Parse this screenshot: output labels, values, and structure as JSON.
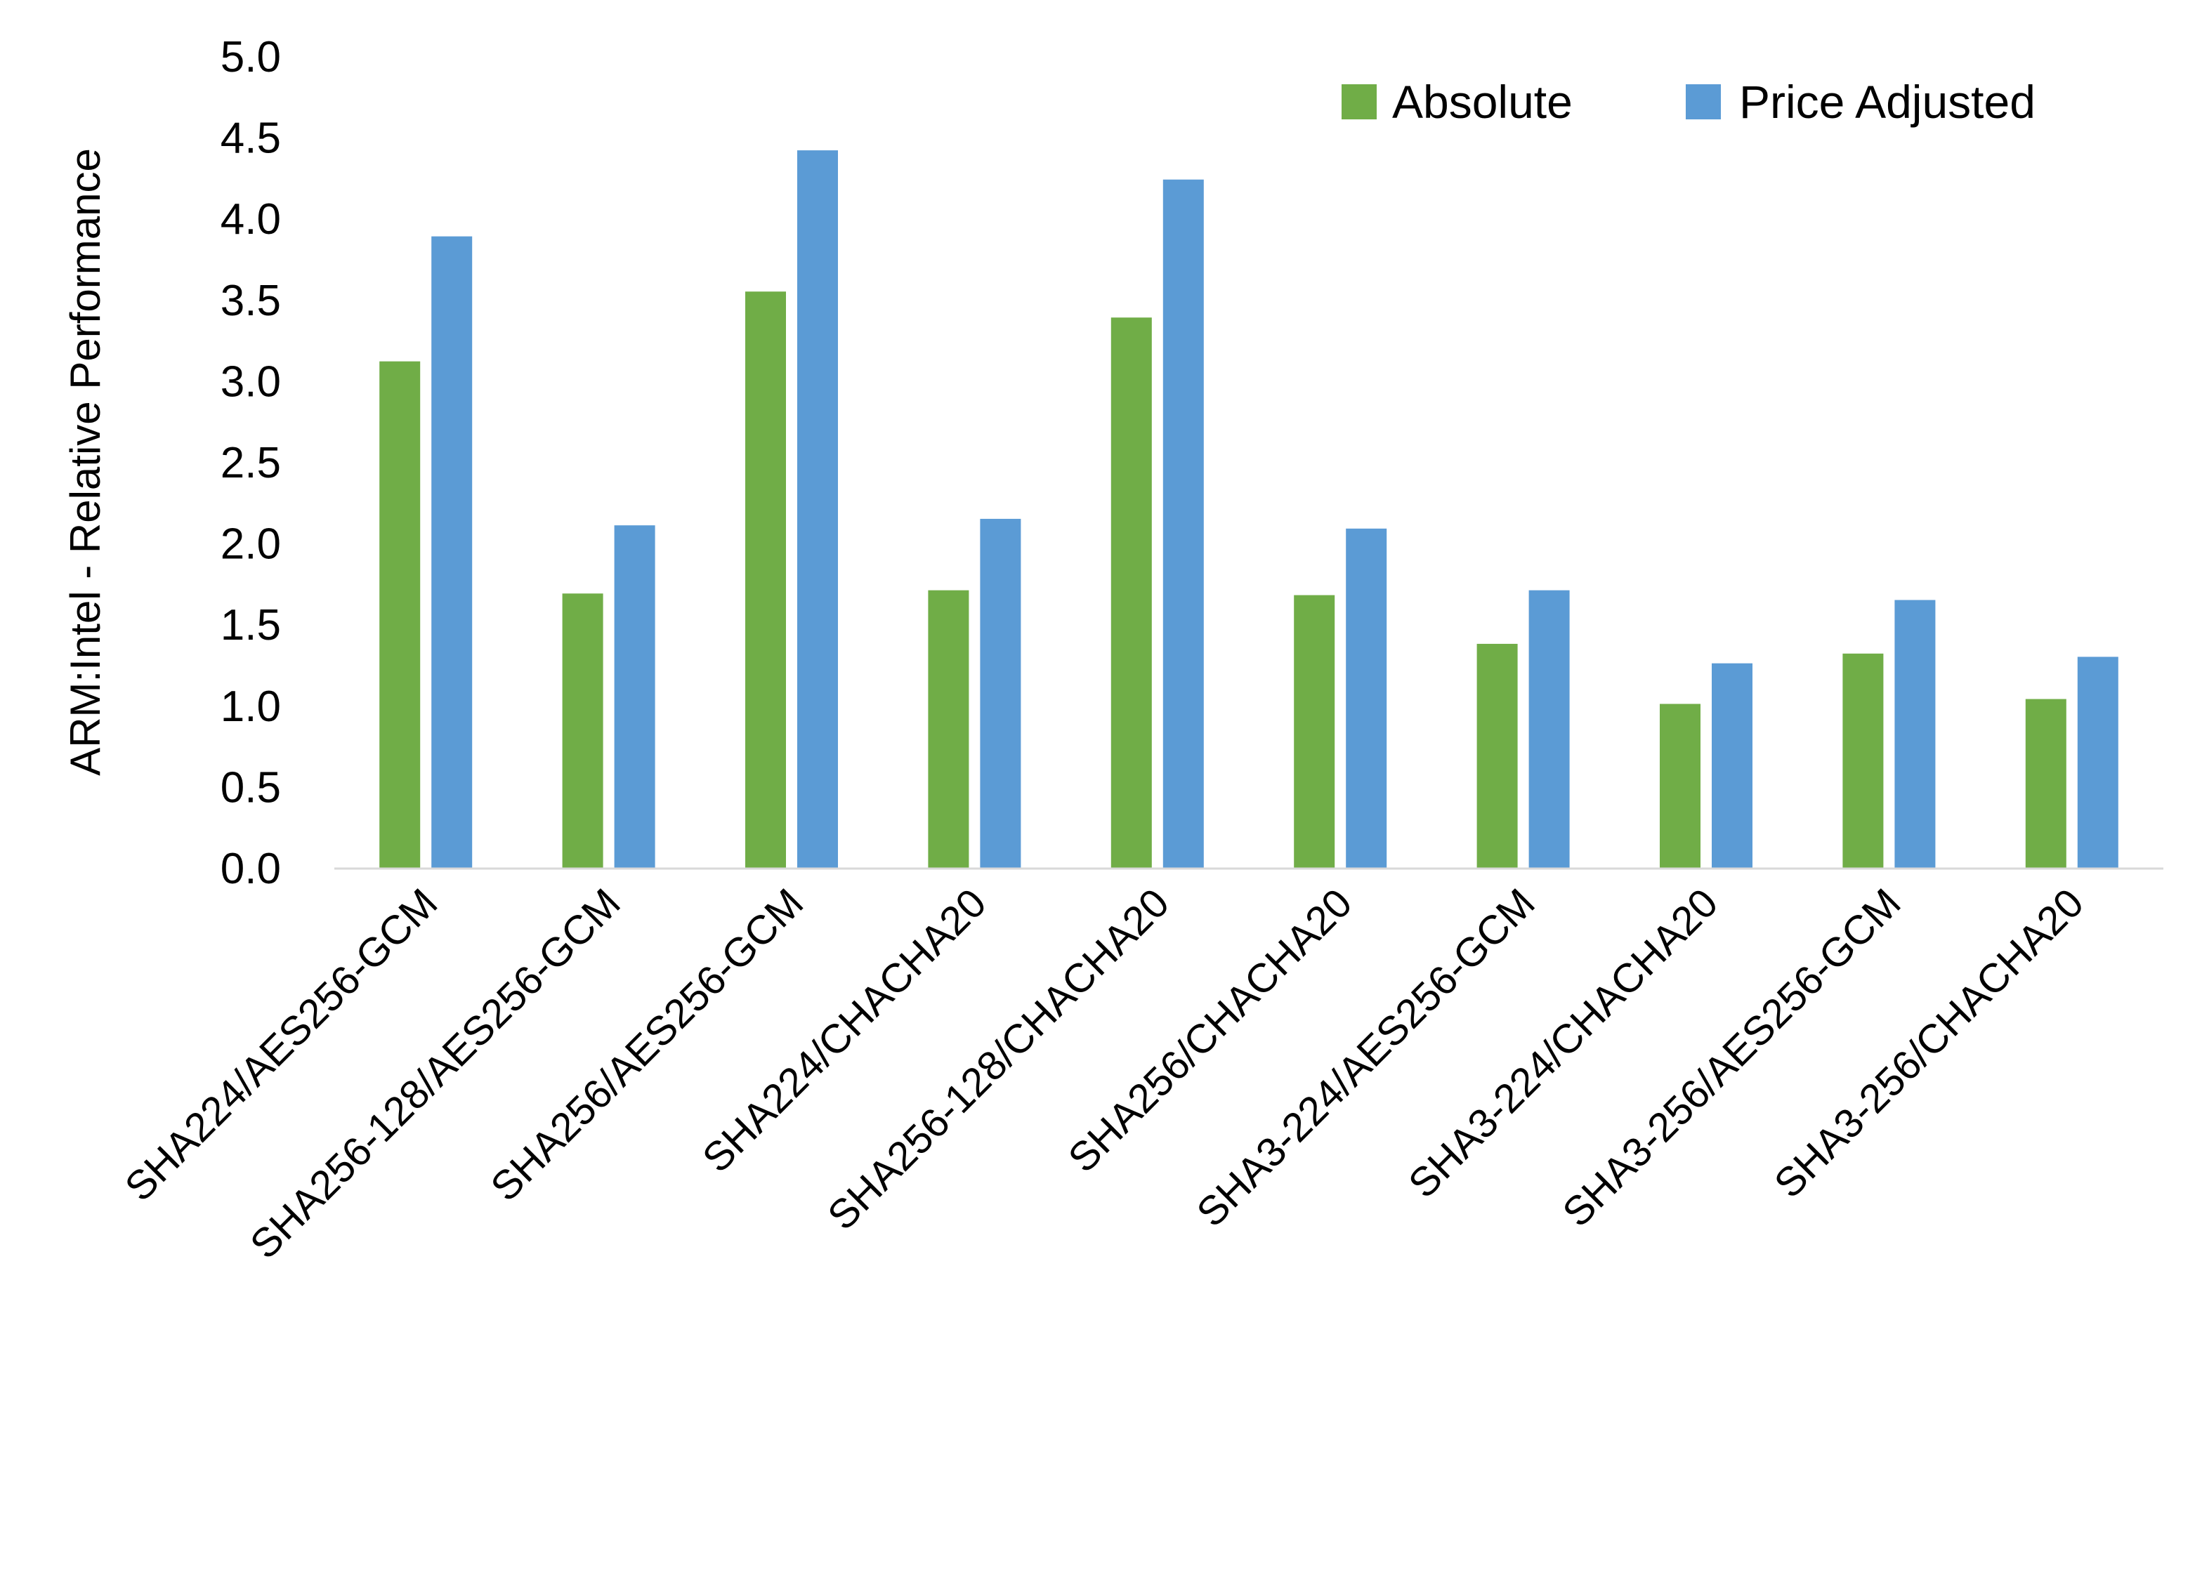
{
  "chart_data": {
    "type": "bar",
    "title": "",
    "xlabel": "",
    "ylabel": "ARM:Intel - Relative Performance",
    "ylim": [
      0,
      5
    ],
    "yticks": [
      "0.0",
      "0.5",
      "1.0",
      "1.5",
      "2.0",
      "2.5",
      "3.0",
      "3.5",
      "4.0",
      "4.5",
      "5.0"
    ],
    "grid": false,
    "legend_position": "top-right",
    "categories": [
      "SHA224/AES256-GCM",
      "SHA256-128/AES256-GCM",
      "SHA256/AES256-GCM",
      "SHA224/CHACHA20",
      "SHA256-128/CHACHA20",
      "SHA256/CHACHA20",
      "SHA3-224/AES256-GCM",
      "SHA3-224/CHACHA20",
      "SHA3-256/AES256-GCM",
      "SHA3-256/CHACHA20"
    ],
    "series": [
      {
        "name": "Absolute",
        "color": "#70AD47",
        "values": [
          3.12,
          1.69,
          3.55,
          1.71,
          3.39,
          1.68,
          1.38,
          1.01,
          1.32,
          1.04
        ]
      },
      {
        "name": "Price Adjusted",
        "color": "#5B9BD5",
        "values": [
          3.89,
          2.11,
          4.42,
          2.15,
          4.24,
          2.09,
          1.71,
          1.26,
          1.65,
          1.3
        ]
      }
    ]
  }
}
